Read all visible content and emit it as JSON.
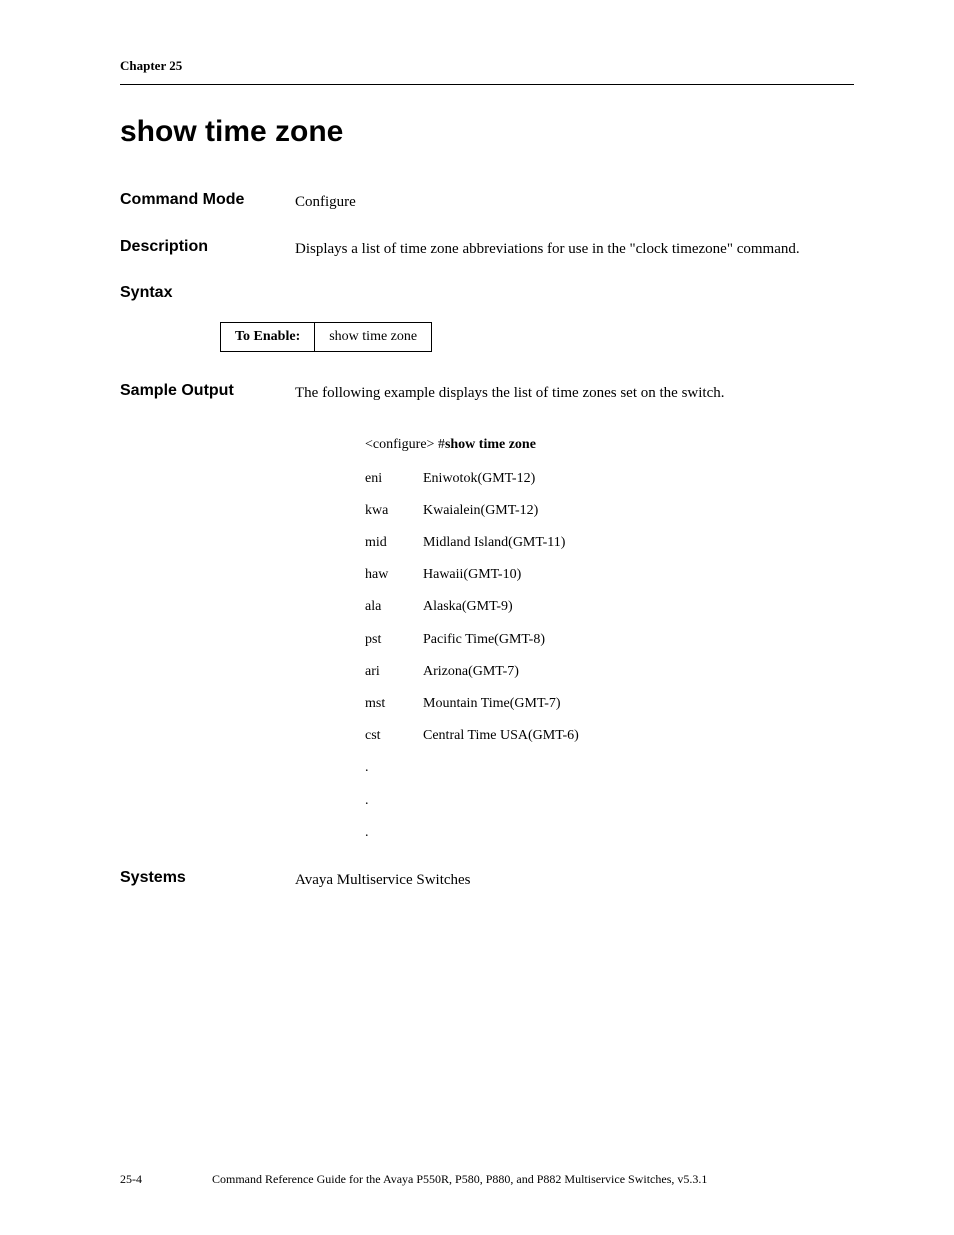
{
  "header": {
    "chapter": "Chapter 25"
  },
  "title": "show time zone",
  "commandMode": {
    "label": "Command Mode",
    "value": "Configure"
  },
  "description": {
    "label": "Description",
    "value": "Displays a list of time zone abbreviations for use in the \"clock timezone\" command."
  },
  "syntax": {
    "label": "Syntax",
    "toEnableLabel": "To Enable:",
    "toEnableValue": "show time zone"
  },
  "sampleOutput": {
    "label": "Sample Output",
    "intro": "The following example displays the list of time zones set on the switch.",
    "promptPrefix": "<configure> #",
    "promptCommand": "show time zone",
    "timezones": [
      {
        "code": "eni",
        "desc": "Eniwotok(GMT-12)"
      },
      {
        "code": "kwa",
        "desc": "Kwaialein(GMT-12)"
      },
      {
        "code": "mid",
        "desc": "Midland Island(GMT-11)"
      },
      {
        "code": "haw",
        "desc": "Hawaii(GMT-10)"
      },
      {
        "code": "ala",
        "desc": "Alaska(GMT-9)"
      },
      {
        "code": "pst",
        "desc": "Pacific Time(GMT-8)"
      },
      {
        "code": "ari",
        "desc": "Arizona(GMT-7)"
      },
      {
        "code": "mst",
        "desc": "Mountain Time(GMT-7)"
      },
      {
        "code": "cst",
        "desc": "Central Time USA(GMT-6)"
      }
    ],
    "dots": [
      ".",
      ".",
      "."
    ]
  },
  "systems": {
    "label": "Systems",
    "value": "Avaya Multiservice Switches"
  },
  "footer": {
    "pageNumber": "25-4",
    "text": "Command Reference Guide for the Avaya P550R, P580, P880, and P882 Multiservice Switches, v5.3.1"
  },
  "colors": {
    "text": "#000000",
    "background": "#ffffff",
    "rule": "#000000"
  }
}
